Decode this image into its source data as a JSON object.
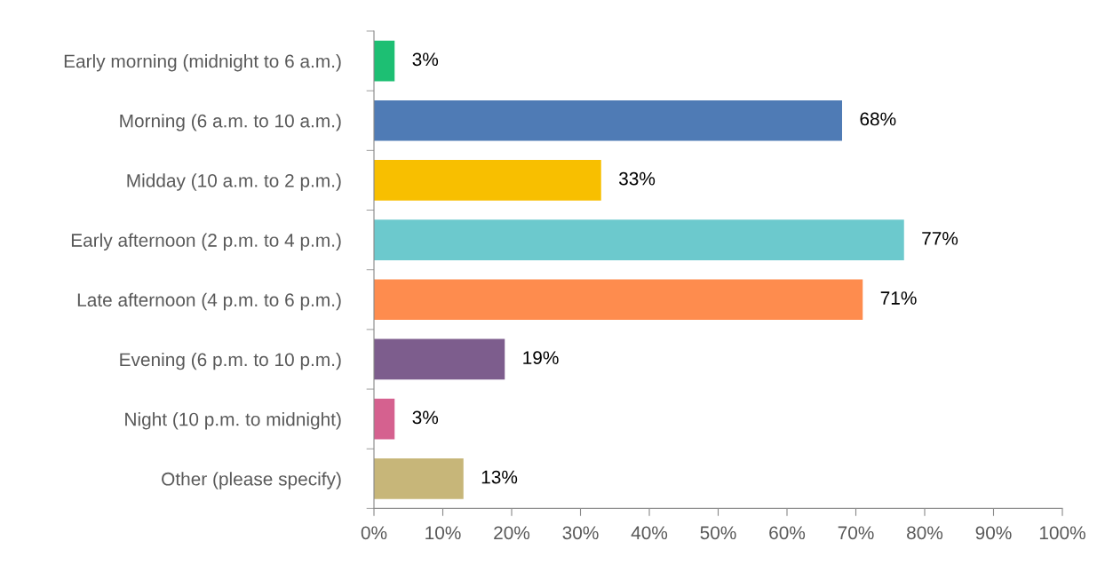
{
  "chart_data": {
    "type": "bar",
    "orientation": "horizontal",
    "categories": [
      "Early morning (midnight to 6 a.m.)",
      "Morning (6 a.m. to 10 a.m.)",
      "Midday (10 a.m. to 2 p.m.)",
      "Early afternoon (2 p.m. to 4 p.m.)",
      "Late afternoon (4 p.m. to 6 p.m.)",
      "Evening (6 p.m. to 10 p.m.)",
      "Night (10 p.m. to midnight)",
      "Other (please specify)"
    ],
    "values": [
      3,
      68,
      33,
      77,
      71,
      19,
      3,
      13
    ],
    "colors": [
      "#1dbf73",
      "#4f7bb5",
      "#f8bf00",
      "#6cc9cd",
      "#fe8c4e",
      "#7d5d8d",
      "#d5618f",
      "#c7b679"
    ],
    "value_labels": [
      "3%",
      "68%",
      "33%",
      "77%",
      "71%",
      "19%",
      "3%",
      "13%"
    ],
    "xlim": [
      0,
      100
    ],
    "xticks": [
      {
        "value": 0,
        "label": "0%"
      },
      {
        "value": 10,
        "label": "10%"
      },
      {
        "value": 20,
        "label": "20%"
      },
      {
        "value": 30,
        "label": "30%"
      },
      {
        "value": 40,
        "label": "40%"
      },
      {
        "value": 50,
        "label": "50%"
      },
      {
        "value": 60,
        "label": "60%"
      },
      {
        "value": 70,
        "label": "70%"
      },
      {
        "value": 80,
        "label": "80%"
      },
      {
        "value": 90,
        "label": "90%"
      },
      {
        "value": 100,
        "label": "100%"
      }
    ],
    "grid": false,
    "legend": false
  }
}
